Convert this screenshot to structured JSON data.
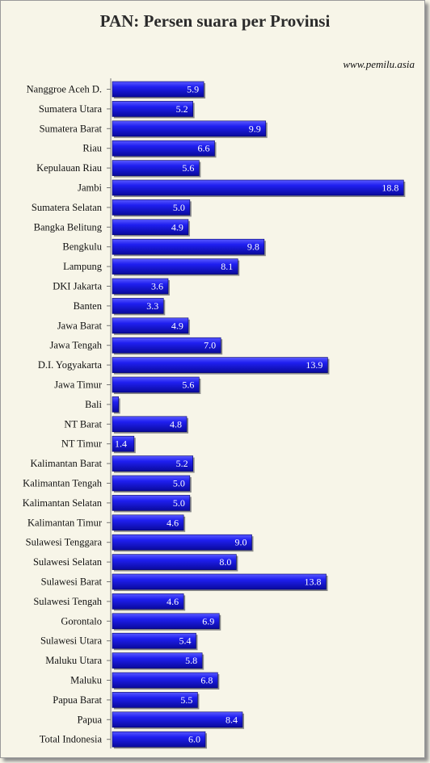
{
  "chart_data": {
    "type": "bar",
    "orientation": "horizontal",
    "title": "PAN: Persen suara per Provinsi",
    "source": "www.pemilu.asia",
    "categories": [
      "Nanggroe Aceh D.",
      "Sumatera Utara",
      "Sumatera Barat",
      "Riau",
      "Kepulauan Riau",
      "Jambi",
      "Sumatera Selatan",
      "Bangka Belitung",
      "Bengkulu",
      "Lampung",
      "DKI Jakarta",
      "Banten",
      "Jawa Barat",
      "Jawa Tengah",
      "D.I. Yogyakarta",
      "Jawa Timur",
      "Bali",
      "NT Barat",
      "NT Timur",
      "Kalimantan Barat",
      "Kalimantan Tengah",
      "Kalimantan Selatan",
      "Kalimantan Timur",
      "Sulawesi Tenggara",
      "Sulawesi Selatan",
      "Sulawesi Barat",
      "Sulawesi Tengah",
      "Gorontalo",
      "Sulawesi Utara",
      "Maluku Utara",
      "Maluku",
      "Papua Barat",
      "Papua",
      "Total Indonesia"
    ],
    "values": [
      5.9,
      5.2,
      9.9,
      6.6,
      5.6,
      18.8,
      5.0,
      4.9,
      9.8,
      8.1,
      3.6,
      3.3,
      4.9,
      7.0,
      13.9,
      5.6,
      0.4,
      4.8,
      1.4,
      5.2,
      5.0,
      5.0,
      4.6,
      9.0,
      8.0,
      13.8,
      4.6,
      6.9,
      5.4,
      5.8,
      6.8,
      5.5,
      8.4,
      6.0
    ],
    "data_labels": [
      "5.9",
      "5.2",
      "9.9",
      "6.6",
      "5.6",
      "18.8",
      "5.0",
      "4.9",
      "9.8",
      "8.1",
      "3.6",
      "3.3",
      "4.9",
      "7.0",
      "13.9",
      "5.6",
      "",
      "4.8",
      "1.4",
      "5.2",
      "5.0",
      "5.0",
      "4.6",
      "9.0",
      "8.0",
      "13.8",
      "4.6",
      "6.9",
      "5.4",
      "5.8",
      "6.8",
      "5.5",
      "8.4",
      "6.0"
    ],
    "xlim": [
      0,
      19.2
    ],
    "grid": false,
    "legend": "none",
    "bar_color": "#1a1adc"
  }
}
